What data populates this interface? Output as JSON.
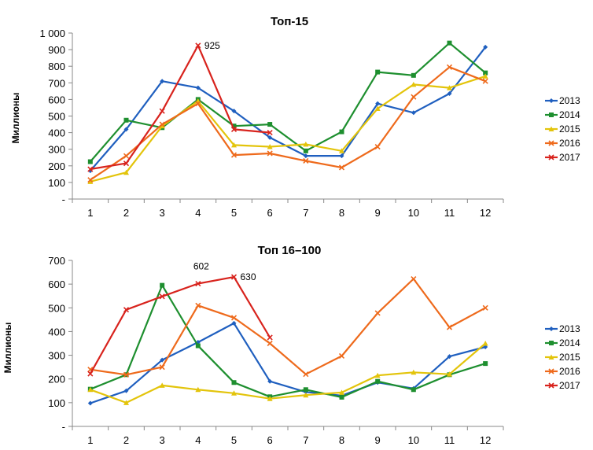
{
  "colors": {
    "2013": "#1f5fbf",
    "2014": "#1e8f2f",
    "2015": "#e3c40b",
    "2016": "#ee6a1c",
    "2017": "#d8231d"
  },
  "chart_data": [
    {
      "type": "line",
      "title": "Топ-15",
      "ylabel": "Миллионы",
      "xlabel": "",
      "categories": [
        "1",
        "2",
        "3",
        "4",
        "5",
        "6",
        "7",
        "8",
        "9",
        "10",
        "11",
        "12"
      ],
      "ylim": [
        0,
        1000
      ],
      "ytick_labels": [
        "-",
        "100",
        "200",
        "300",
        "400",
        "500",
        "600",
        "700",
        "800",
        "900",
        "1 000"
      ],
      "legend_position": "right",
      "series": [
        {
          "name": "2013",
          "values": [
            170,
            420,
            710,
            670,
            530,
            370,
            260,
            260,
            575,
            520,
            635,
            915
          ]
        },
        {
          "name": "2014",
          "values": [
            225,
            475,
            430,
            600,
            440,
            450,
            290,
            405,
            765,
            745,
            940,
            760
          ]
        },
        {
          "name": "2015",
          "values": [
            105,
            160,
            440,
            590,
            325,
            315,
            330,
            290,
            545,
            690,
            670,
            740
          ]
        },
        {
          "name": "2016",
          "values": [
            115,
            260,
            450,
            575,
            265,
            275,
            230,
            190,
            315,
            615,
            795,
            710
          ]
        },
        {
          "name": "2017",
          "values": [
            180,
            215,
            530,
            925,
            420,
            400,
            null,
            null,
            null,
            null,
            null,
            null
          ]
        }
      ],
      "annotations": [
        {
          "series": "2017",
          "index": 3,
          "text": "925"
        }
      ]
    },
    {
      "type": "line",
      "title": "Топ 16–100",
      "ylabel": "Миллионы",
      "xlabel": "",
      "categories": [
        "1",
        "2",
        "3",
        "4",
        "5",
        "6",
        "7",
        "8",
        "9",
        "10",
        "11",
        "12"
      ],
      "ylim": [
        0,
        700
      ],
      "ytick_labels": [
        "-",
        "100",
        "200",
        "300",
        "400",
        "500",
        "600",
        "700"
      ],
      "legend_position": "right",
      "series": [
        {
          "name": "2013",
          "values": [
            98,
            150,
            280,
            355,
            435,
            190,
            145,
            130,
            185,
            160,
            295,
            335
          ]
        },
        {
          "name": "2014",
          "values": [
            157,
            218,
            595,
            340,
            185,
            125,
            155,
            123,
            190,
            155,
            218,
            265
          ]
        },
        {
          "name": "2015",
          "values": [
            155,
            100,
            173,
            155,
            140,
            117,
            132,
            143,
            215,
            228,
            220,
            350
          ]
        },
        {
          "name": "2016",
          "values": [
            240,
            218,
            250,
            510,
            458,
            350,
            220,
            297,
            478,
            622,
            418,
            500
          ]
        },
        {
          "name": "2017",
          "values": [
            222,
            492,
            548,
            602,
            630,
            375,
            null,
            null,
            null,
            null,
            null,
            null
          ]
        }
      ],
      "annotations": [
        {
          "series": "2017",
          "index": 3,
          "text": "602"
        },
        {
          "series": "2017",
          "index": 4,
          "text": "630"
        }
      ]
    }
  ]
}
